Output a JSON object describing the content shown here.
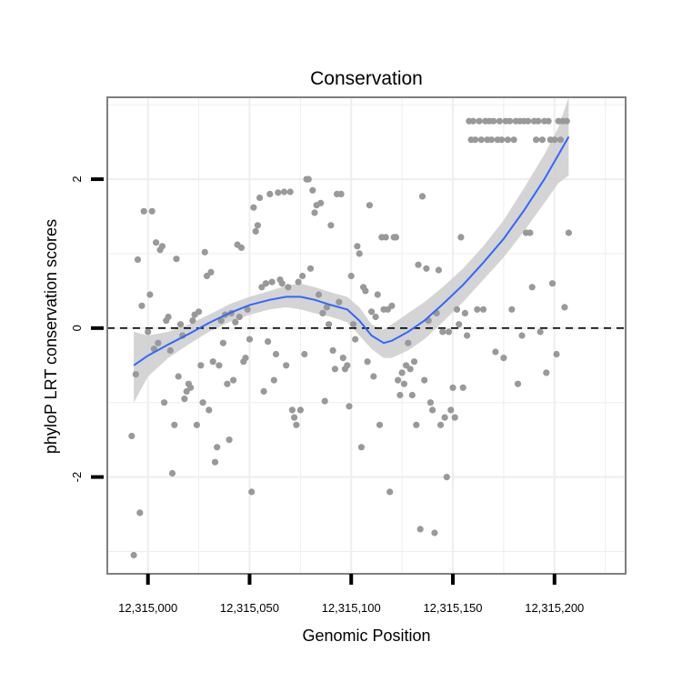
{
  "chart_data": {
    "type": "scatter",
    "title": "Conservation",
    "xlabel": "Genomic Position",
    "ylabel": "phyloP LRT conservation scores",
    "xlim": [
      12314980,
      12315235
    ],
    "ylim": [
      -3.3,
      3.1
    ],
    "x_ticks": [
      12315000,
      12315050,
      12315100,
      12315150,
      12315200
    ],
    "x_tick_labels": [
      "12,315,000",
      "12,315,050",
      "12,315,100",
      "12,315,150",
      "12,315,200"
    ],
    "y_ticks": [
      -2,
      0,
      2
    ],
    "y_tick_labels": [
      "-2",
      "0",
      "2"
    ],
    "reference_line": {
      "y": 0,
      "style": "dashed",
      "color": "#000000"
    },
    "grid": true,
    "colors": {
      "points": "#999999",
      "smooth": "#3366FF",
      "band": "#CCCCCC",
      "grid": "#EEEEEE",
      "border": "#7F7F7F"
    },
    "points": [
      [
        12314992,
        -1.45
      ],
      [
        12314993,
        -3.05
      ],
      [
        12314994,
        -0.62
      ],
      [
        12314995,
        0.92
      ],
      [
        12314996,
        -2.48
      ],
      [
        12314997,
        0.3
      ],
      [
        12314998,
        1.57
      ],
      [
        12315000,
        -0.05
      ],
      [
        12315001,
        0.45
      ],
      [
        12315002,
        1.57
      ],
      [
        12315003,
        -0.28
      ],
      [
        12315004,
        1.15
      ],
      [
        12315005,
        -0.2
      ],
      [
        12315006,
        1.05
      ],
      [
        12315007,
        1.1
      ],
      [
        12315008,
        -1.0
      ],
      [
        12315009,
        0.1
      ],
      [
        12315010,
        0.15
      ],
      [
        12315011,
        -0.3
      ],
      [
        12315012,
        -1.95
      ],
      [
        12315013,
        -1.3
      ],
      [
        12315014,
        0.93
      ],
      [
        12315015,
        -0.65
      ],
      [
        12315016,
        0.05
      ],
      [
        12315017,
        -0.1
      ],
      [
        12315018,
        -0.95
      ],
      [
        12315019,
        -0.85
      ],
      [
        12315020,
        -0.75
      ],
      [
        12315021,
        -0.8
      ],
      [
        12315022,
        0.1
      ],
      [
        12315023,
        0.18
      ],
      [
        12315024,
        -1.3
      ],
      [
        12315025,
        0.22
      ],
      [
        12315026,
        -0.5
      ],
      [
        12315027,
        -1.0
      ],
      [
        12315028,
        1.02
      ],
      [
        12315029,
        0.7
      ],
      [
        12315030,
        -1.1
      ],
      [
        12315031,
        0.75
      ],
      [
        12315032,
        -0.45
      ],
      [
        12315033,
        -1.8
      ],
      [
        12315034,
        -1.6
      ],
      [
        12315035,
        -0.5
      ],
      [
        12315036,
        0.1
      ],
      [
        12315037,
        -0.2
      ],
      [
        12315038,
        0.18
      ],
      [
        12315039,
        -0.75
      ],
      [
        12315040,
        -1.5
      ],
      [
        12315041,
        0.2
      ],
      [
        12315042,
        -0.7
      ],
      [
        12315043,
        0.08
      ],
      [
        12315044,
        1.12
      ],
      [
        12315045,
        0.15
      ],
      [
        12315046,
        1.08
      ],
      [
        12315047,
        -0.45
      ],
      [
        12315048,
        -0.4
      ],
      [
        12315049,
        0.25
      ],
      [
        12315050,
        -0.15
      ],
      [
        12315051,
        -2.2
      ],
      [
        12315052,
        1.62
      ],
      [
        12315053,
        1.3
      ],
      [
        12315054,
        1.38
      ],
      [
        12315055,
        1.75
      ],
      [
        12315056,
        0.55
      ],
      [
        12315057,
        -0.85
      ],
      [
        12315058,
        0.6
      ],
      [
        12315059,
        -0.18
      ],
      [
        12315060,
        1.8
      ],
      [
        12315061,
        0.62
      ],
      [
        12315062,
        -0.7
      ],
      [
        12315063,
        -0.35
      ],
      [
        12315064,
        1.82
      ],
      [
        12315065,
        0.65
      ],
      [
        12315066,
        0.6
      ],
      [
        12315067,
        1.83
      ],
      [
        12315068,
        -0.5
      ],
      [
        12315069,
        0.55
      ],
      [
        12315070,
        1.83
      ],
      [
        12315071,
        -1.1
      ],
      [
        12315072,
        -1.2
      ],
      [
        12315073,
        -1.3
      ],
      [
        12315074,
        0.62
      ],
      [
        12315075,
        -1.1
      ],
      [
        12315076,
        0.7
      ],
      [
        12315077,
        -0.35
      ],
      [
        12315078,
        2.0
      ],
      [
        12315079,
        2.0
      ],
      [
        12315080,
        0.8
      ],
      [
        12315081,
        1.85
      ],
      [
        12315082,
        1.55
      ],
      [
        12315083,
        1.65
      ],
      [
        12315084,
        0.45
      ],
      [
        12315085,
        1.68
      ],
      [
        12315086,
        0.2
      ],
      [
        12315087,
        -0.98
      ],
      [
        12315088,
        0.28
      ],
      [
        12315089,
        0.05
      ],
      [
        12315090,
        1.38
      ],
      [
        12315091,
        -0.3
      ],
      [
        12315092,
        -0.55
      ],
      [
        12315093,
        1.8
      ],
      [
        12315094,
        0.35
      ],
      [
        12315095,
        1.8
      ],
      [
        12315096,
        -0.4
      ],
      [
        12315097,
        -0.55
      ],
      [
        12315098,
        -0.5
      ],
      [
        12315099,
        -1.05
      ],
      [
        12315100,
        0.7
      ],
      [
        12315101,
        0.05
      ],
      [
        12315102,
        -0.15
      ],
      [
        12315103,
        1.1
      ],
      [
        12315104,
        1.0
      ],
      [
        12315105,
        -1.6
      ],
      [
        12315106,
        0.55
      ],
      [
        12315107,
        0.5
      ],
      [
        12315108,
        -0.45
      ],
      [
        12315109,
        1.65
      ],
      [
        12315110,
        0.22
      ],
      [
        12315111,
        -0.65
      ],
      [
        12315112,
        0.15
      ],
      [
        12315113,
        0.45
      ],
      [
        12315114,
        -1.3
      ],
      [
        12315115,
        1.22
      ],
      [
        12315116,
        0.25
      ],
      [
        12315117,
        1.22
      ],
      [
        12315118,
        0.25
      ],
      [
        12315119,
        -2.2
      ],
      [
        12315120,
        0.3
      ],
      [
        12315121,
        1.22
      ],
      [
        12315122,
        1.22
      ],
      [
        12315123,
        -0.7
      ],
      [
        12315124,
        -0.9
      ],
      [
        12315125,
        -0.6
      ],
      [
        12315126,
        -0.75
      ],
      [
        12315127,
        -0.5
      ],
      [
        12315128,
        -0.2
      ],
      [
        12315129,
        -0.55
      ],
      [
        12315130,
        -0.9
      ],
      [
        12315131,
        -0.45
      ],
      [
        12315132,
        -1.3
      ],
      [
        12315133,
        0.85
      ],
      [
        12315134,
        -2.7
      ],
      [
        12315135,
        1.77
      ],
      [
        12315136,
        -0.7
      ],
      [
        12315137,
        0.8
      ],
      [
        12315138,
        0.1
      ],
      [
        12315139,
        -1.0
      ],
      [
        12315140,
        -1.1
      ],
      [
        12315141,
        -2.75
      ],
      [
        12315142,
        0.2
      ],
      [
        12315143,
        0.78
      ],
      [
        12315144,
        -1.3
      ],
      [
        12315145,
        -0.05
      ],
      [
        12315146,
        -1.2
      ],
      [
        12315147,
        -2.0
      ],
      [
        12315148,
        -0.05
      ],
      [
        12315149,
        -1.1
      ],
      [
        12315150,
        -0.8
      ],
      [
        12315151,
        -1.2
      ],
      [
        12315152,
        0.25
      ],
      [
        12315153,
        0.05
      ],
      [
        12315154,
        1.22
      ],
      [
        12315155,
        -0.8
      ],
      [
        12315156,
        0.2
      ],
      [
        12315157,
        -0.1
      ],
      [
        12315158,
        2.78
      ],
      [
        12315159,
        2.53
      ],
      [
        12315160,
        2.78
      ],
      [
        12315161,
        2.53
      ],
      [
        12315162,
        0.25
      ],
      [
        12315163,
        2.78
      ],
      [
        12315164,
        2.53
      ],
      [
        12315165,
        0.25
      ],
      [
        12315166,
        2.78
      ],
      [
        12315167,
        2.53
      ],
      [
        12315168,
        2.78
      ],
      [
        12315169,
        2.53
      ],
      [
        12315170,
        2.78
      ],
      [
        12315171,
        -0.32
      ],
      [
        12315172,
        2.53
      ],
      [
        12315173,
        2.78
      ],
      [
        12315174,
        2.53
      ],
      [
        12315175,
        -0.4
      ],
      [
        12315176,
        2.78
      ],
      [
        12315177,
        2.53
      ],
      [
        12315178,
        2.78
      ],
      [
        12315179,
        0.25
      ],
      [
        12315180,
        2.53
      ],
      [
        12315181,
        2.78
      ],
      [
        12315182,
        -0.75
      ],
      [
        12315183,
        2.78
      ],
      [
        12315184,
        -0.1
      ],
      [
        12315185,
        2.78
      ],
      [
        12315186,
        1.28
      ],
      [
        12315187,
        2.78
      ],
      [
        12315188,
        1.28
      ],
      [
        12315189,
        0.55
      ],
      [
        12315190,
        2.78
      ],
      [
        12315191,
        2.53
      ],
      [
        12315192,
        2.78
      ],
      [
        12315193,
        -0.05
      ],
      [
        12315194,
        2.53
      ],
      [
        12315195,
        2.78
      ],
      [
        12315196,
        -0.6
      ],
      [
        12315197,
        2.78
      ],
      [
        12315198,
        2.53
      ],
      [
        12315199,
        0.6
      ],
      [
        12315200,
        2.53
      ],
      [
        12315201,
        -0.35
      ],
      [
        12315202,
        2.78
      ],
      [
        12315203,
        2.53
      ],
      [
        12315204,
        2.78
      ],
      [
        12315205,
        0.28
      ],
      [
        12315206,
        2.78
      ],
      [
        12315207,
        1.28
      ]
    ],
    "smooth": [
      [
        12314993,
        -0.5
      ],
      [
        12315000,
        -0.37
      ],
      [
        12315010,
        -0.22
      ],
      [
        12315020,
        -0.08
      ],
      [
        12315030,
        0.07
      ],
      [
        12315040,
        0.2
      ],
      [
        12315050,
        0.31
      ],
      [
        12315060,
        0.38
      ],
      [
        12315068,
        0.42
      ],
      [
        12315075,
        0.42
      ],
      [
        12315082,
        0.38
      ],
      [
        12315090,
        0.31
      ],
      [
        12315098,
        0.25
      ],
      [
        12315104,
        0.1
      ],
      [
        12315110,
        -0.1
      ],
      [
        12315116,
        -0.2
      ],
      [
        12315120,
        -0.17
      ],
      [
        12315128,
        -0.05
      ],
      [
        12315136,
        0.1
      ],
      [
        12315145,
        0.32
      ],
      [
        12315155,
        0.58
      ],
      [
        12315165,
        0.88
      ],
      [
        12315175,
        1.2
      ],
      [
        12315185,
        1.58
      ],
      [
        12315195,
        2.0
      ],
      [
        12315202,
        2.33
      ],
      [
        12315207,
        2.57
      ]
    ],
    "band_upper": [
      [
        12314993,
        -0.05
      ],
      [
        12315000,
        -0.1
      ],
      [
        12315010,
        -0.05
      ],
      [
        12315020,
        0.05
      ],
      [
        12315030,
        0.18
      ],
      [
        12315040,
        0.32
      ],
      [
        12315050,
        0.42
      ],
      [
        12315060,
        0.5
      ],
      [
        12315068,
        0.57
      ],
      [
        12315075,
        0.6
      ],
      [
        12315082,
        0.55
      ],
      [
        12315090,
        0.48
      ],
      [
        12315098,
        0.42
      ],
      [
        12315104,
        0.28
      ],
      [
        12315110,
        0.05
      ],
      [
        12315116,
        -0.02
      ],
      [
        12315120,
        0.05
      ],
      [
        12315128,
        0.2
      ],
      [
        12315136,
        0.35
      ],
      [
        12315145,
        0.55
      ],
      [
        12315155,
        0.8
      ],
      [
        12315165,
        1.1
      ],
      [
        12315175,
        1.45
      ],
      [
        12315185,
        1.88
      ],
      [
        12315195,
        2.33
      ],
      [
        12315202,
        2.7
      ],
      [
        12315207,
        3.1
      ]
    ],
    "band_lower": [
      [
        12314993,
        -1.0
      ],
      [
        12315000,
        -0.65
      ],
      [
        12315010,
        -0.4
      ],
      [
        12315020,
        -0.22
      ],
      [
        12315030,
        -0.05
      ],
      [
        12315040,
        0.08
      ],
      [
        12315050,
        0.18
      ],
      [
        12315060,
        0.25
      ],
      [
        12315068,
        0.28
      ],
      [
        12315075,
        0.25
      ],
      [
        12315082,
        0.2
      ],
      [
        12315090,
        0.15
      ],
      [
        12315098,
        0.08
      ],
      [
        12315104,
        -0.1
      ],
      [
        12315110,
        -0.28
      ],
      [
        12315116,
        -0.4
      ],
      [
        12315120,
        -0.4
      ],
      [
        12315128,
        -0.3
      ],
      [
        12315136,
        -0.15
      ],
      [
        12315145,
        0.08
      ],
      [
        12315155,
        0.35
      ],
      [
        12315165,
        0.65
      ],
      [
        12315175,
        0.95
      ],
      [
        12315185,
        1.3
      ],
      [
        12315195,
        1.68
      ],
      [
        12315202,
        1.95
      ],
      [
        12315207,
        2.05
      ]
    ]
  }
}
